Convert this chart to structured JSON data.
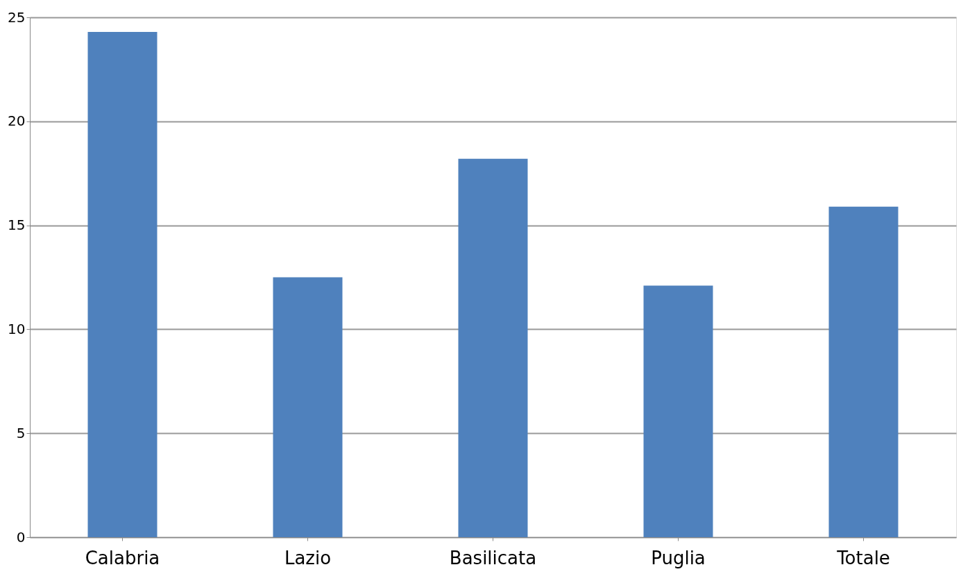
{
  "chart_data": {
    "type": "bar",
    "categories": [
      "Calabria",
      "Lazio",
      "Basilicata",
      "Puglia",
      "Totale"
    ],
    "values": [
      24.3,
      12.5,
      18.2,
      12.1,
      15.9
    ],
    "color": "#4f81bd",
    "ylim": [
      0,
      25
    ],
    "yticks": [
      0,
      5,
      10,
      15,
      20,
      25
    ],
    "grid": "y"
  }
}
